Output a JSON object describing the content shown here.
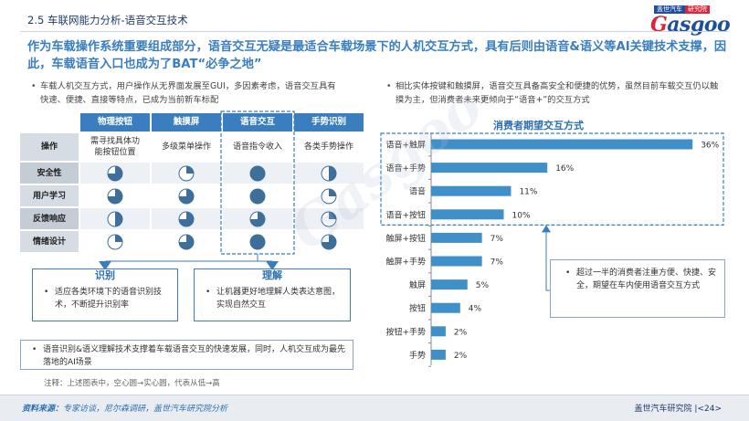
{
  "header": {
    "section_title": "2.5 车联网能力分析-语音交互技术",
    "logo_badge_1": "盖世汽车",
    "logo_badge_2": "研究院",
    "logo_word_g": "G",
    "logo_word_rest": "asgoo"
  },
  "headline": "作为车载操作系统重要组成部分，语音交互无疑是最适合车载场景下的人机交互方式，具有后则由语音&语义等AI关键技术支撑，因此，车载语音入口也成为了BAT“必争之地”",
  "left": {
    "bullet": "车载人机交互方式，用户操作从无界面发展至GUI，多因素考虑，语音交互具有快速、便捷、直接等特点，已成为当前新车标配",
    "table": {
      "columns": [
        "物理按钮",
        "触摸屏",
        "语音交互",
        "手势识别"
      ],
      "rows": [
        {
          "label": "操作",
          "cells": [
            "需寻找具体功能按钮位置",
            "多级菜单操作",
            "语音指令收入",
            "各类手势操作"
          ]
        },
        {
          "label": "安全性",
          "fills": [
            0.75,
            0.25,
            1.0,
            0.5
          ]
        },
        {
          "label": "用户学习",
          "fills": [
            0.75,
            0.75,
            1.0,
            0.25
          ]
        },
        {
          "label": "反馈响应",
          "fills": [
            0.5,
            0.75,
            0.75,
            0.25
          ]
        },
        {
          "label": "情绪设计",
          "fills": [
            0.25,
            0.75,
            1.0,
            0.75
          ]
        }
      ]
    },
    "callout_recognition": {
      "title": "识别",
      "text": "适应各类环境下的语音识别技术，不断提升识别率"
    },
    "callout_understanding": {
      "title": "理解",
      "text": "让机器更好地理解人类表达意图，实现自然交互"
    },
    "bottom_note": "语音识别&语义理解技术支撑着车载语音交互的快速发展，同时，人机交互成为最先落地的AI场景",
    "legend_note": "注释：上述图表中，空心圆→实心圆，代表从低→高"
  },
  "right": {
    "bullet": "相比实体按键和触摸屏，语音交互具备高安全和便捷的优势，虽然目前车载交互仍以触摸为主，但消费者未来更倾向于“语音+”的交互方式",
    "annotation": "超过一半的消费者注重方便、快捷、安全，期望在车内使用语音交互方式"
  },
  "chart_data": {
    "type": "bar",
    "orientation": "horizontal",
    "title": "消费者期望交互方式",
    "categories": [
      "语音+触屏",
      "语音+手势",
      "语音",
      "语音+按钮",
      "触屏+按钮",
      "触屏+手势",
      "触屏",
      "按钮",
      "按钮+手势",
      "手势"
    ],
    "values": [
      36,
      16,
      11,
      10,
      7,
      7,
      5,
      4,
      2,
      2
    ],
    "value_labels": [
      "36%",
      "16%",
      "11%",
      "10%",
      "7%",
      "7%",
      "5%",
      "4%",
      "2%",
      "2%"
    ],
    "xlim": [
      0,
      40
    ],
    "highlighted_categories": [
      "语音+触屏",
      "语音+手势",
      "语音",
      "语音+按钮"
    ],
    "bar_color": "#3f8fc9",
    "grid": false
  },
  "footer": {
    "source_label": "资料来源：",
    "source_text": "专家访谈，尼尔森调研，盖世汽车研究院分析",
    "brand": "盖世汽车研究院",
    "page": "|<24>"
  },
  "colors": {
    "primary": "#3a7ebf",
    "pie": "#3d6f9a",
    "highlight_border": "#3a7ebf"
  }
}
